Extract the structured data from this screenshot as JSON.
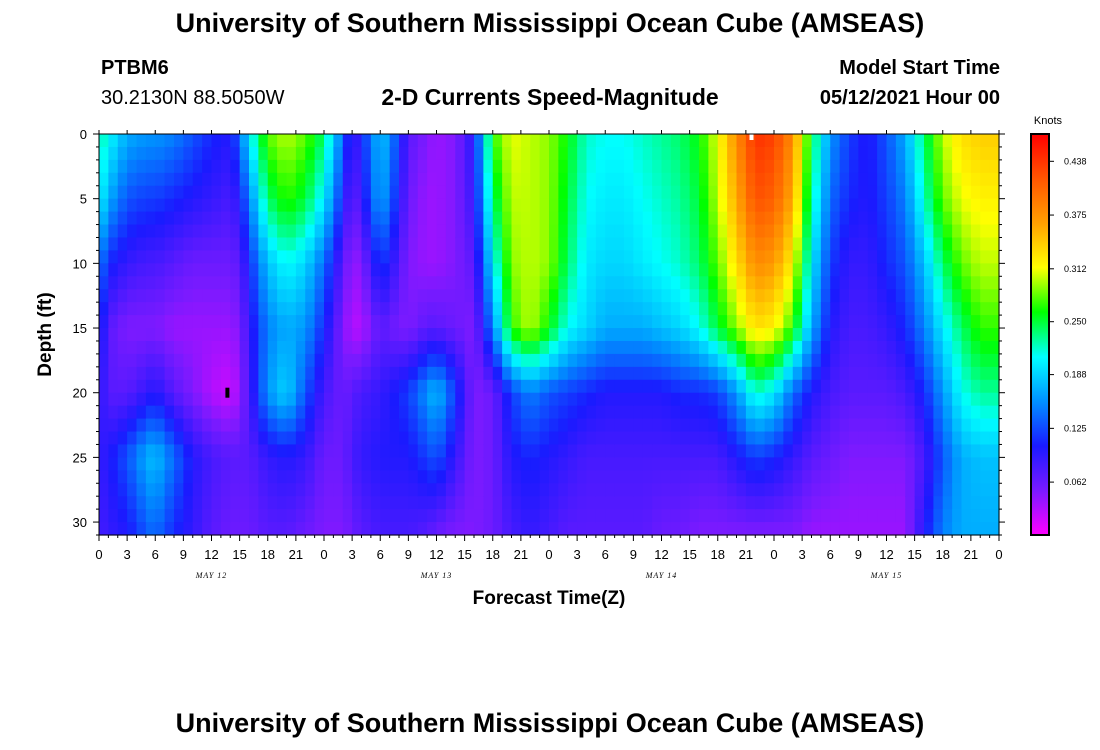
{
  "header": {
    "title": "University of Southern Mississippi Ocean Cube (AMSEAS)",
    "station_id": "PTBM6",
    "station_coords": "30.2130N  88.5050W",
    "plot_title": "2-D Currents Speed-Magnitude",
    "start_label": "Model Start Time",
    "start_value": "05/12/2021 Hour 00"
  },
  "footer": {
    "title": "University of Southern Mississippi Ocean Cube (AMSEAS)"
  },
  "chart_data": {
    "type": "heatmap",
    "title": "2-D Currents Speed-Magnitude",
    "xlabel": "Forecast Time(Z)",
    "ylabel": "Depth (ft)",
    "x_unit": "forecast hour",
    "xlim": [
      0,
      96
    ],
    "ylim": [
      31,
      0
    ],
    "x_ticks": [
      {
        "hour": 0,
        "label": "0"
      },
      {
        "hour": 3,
        "label": "3"
      },
      {
        "hour": 6,
        "label": "6"
      },
      {
        "hour": 9,
        "label": "9"
      },
      {
        "hour": 12,
        "label": "12"
      },
      {
        "hour": 15,
        "label": "15"
      },
      {
        "hour": 18,
        "label": "18"
      },
      {
        "hour": 21,
        "label": "21"
      },
      {
        "hour": 24,
        "label": "0"
      },
      {
        "hour": 27,
        "label": "3"
      },
      {
        "hour": 30,
        "label": "6"
      },
      {
        "hour": 33,
        "label": "9"
      },
      {
        "hour": 36,
        "label": "12"
      },
      {
        "hour": 39,
        "label": "15"
      },
      {
        "hour": 42,
        "label": "18"
      },
      {
        "hour": 45,
        "label": "21"
      },
      {
        "hour": 48,
        "label": "0"
      },
      {
        "hour": 51,
        "label": "3"
      },
      {
        "hour": 54,
        "label": "6"
      },
      {
        "hour": 57,
        "label": "9"
      },
      {
        "hour": 60,
        "label": "12"
      },
      {
        "hour": 63,
        "label": "15"
      },
      {
        "hour": 66,
        "label": "18"
      },
      {
        "hour": 69,
        "label": "21"
      },
      {
        "hour": 72,
        "label": "0"
      },
      {
        "hour": 75,
        "label": "3"
      },
      {
        "hour": 78,
        "label": "6"
      },
      {
        "hour": 81,
        "label": "9"
      },
      {
        "hour": 84,
        "label": "12"
      },
      {
        "hour": 87,
        "label": "15"
      },
      {
        "hour": 90,
        "label": "18"
      },
      {
        "hour": 93,
        "label": "21"
      },
      {
        "hour": 96,
        "label": "0"
      }
    ],
    "day_labels": [
      {
        "hour": 12,
        "label": "MAY 12"
      },
      {
        "hour": 36,
        "label": "MAY 13"
      },
      {
        "hour": 60,
        "label": "MAY 14"
      },
      {
        "hour": 84,
        "label": "MAY 15"
      }
    ],
    "y_ticks": [
      0,
      5,
      10,
      15,
      20,
      25,
      30
    ],
    "colorbar": {
      "title": "Knots",
      "range": [
        0.0,
        0.47
      ],
      "ticks": [
        0.062,
        0.125,
        0.188,
        0.25,
        0.312,
        0.375,
        0.438
      ],
      "tick_labels": [
        "0.062",
        "0.125",
        "0.188",
        "0.250",
        "0.312",
        "0.375",
        "0.438"
      ],
      "colors": [
        "#ff00ff",
        "#7a1aff",
        "#1a1aff",
        "#0090ff",
        "#00ffff",
        "#00ff00",
        "#ffff00",
        "#ffa000",
        "#ff5500",
        "#ff0000"
      ]
    },
    "speed_profiles": {
      "description": "speed (knots) at depths 0,5,10,15,20,25,31 ft for each forecast hour",
      "depths_ft": [
        0,
        5,
        10,
        15,
        20,
        25,
        31
      ],
      "hours": [
        0,
        1,
        3,
        5,
        6,
        8,
        10,
        12,
        14,
        15,
        16,
        18,
        20,
        22,
        24,
        26,
        27,
        28,
        30,
        31,
        33,
        35,
        36,
        38,
        40,
        42,
        44,
        46,
        48,
        50,
        52,
        54,
        56,
        58,
        60,
        62,
        64,
        66,
        68,
        70,
        72,
        74,
        76,
        78,
        80,
        82,
        84,
        86,
        88,
        90,
        92,
        94,
        96
      ],
      "speed": [
        [
          0.23,
          0.21,
          0.15,
          0.12,
          0.1,
          0.09,
          0.08
        ],
        [
          0.21,
          0.17,
          0.11,
          0.07,
          0.07,
          0.1,
          0.09
        ],
        [
          0.17,
          0.13,
          0.09,
          0.05,
          0.07,
          0.13,
          0.1
        ],
        [
          0.16,
          0.12,
          0.08,
          0.05,
          0.09,
          0.17,
          0.13
        ],
        [
          0.16,
          0.12,
          0.08,
          0.05,
          0.1,
          0.18,
          0.14
        ],
        [
          0.15,
          0.11,
          0.07,
          0.04,
          0.07,
          0.14,
          0.11
        ],
        [
          0.13,
          0.1,
          0.06,
          0.04,
          0.05,
          0.1,
          0.09
        ],
        [
          0.11,
          0.09,
          0.06,
          0.04,
          0.03,
          0.08,
          0.07
        ],
        [
          0.1,
          0.08,
          0.06,
          0.04,
          0.02,
          0.07,
          0.06
        ],
        [
          0.14,
          0.1,
          0.07,
          0.05,
          0.04,
          0.07,
          0.06
        ],
        [
          0.2,
          0.15,
          0.11,
          0.09,
          0.08,
          0.07,
          0.06
        ],
        [
          0.28,
          0.24,
          0.18,
          0.15,
          0.16,
          0.09,
          0.07
        ],
        [
          0.3,
          0.27,
          0.21,
          0.17,
          0.19,
          0.1,
          0.07
        ],
        [
          0.28,
          0.25,
          0.19,
          0.16,
          0.13,
          0.09,
          0.06
        ],
        [
          0.24,
          0.2,
          0.14,
          0.11,
          0.08,
          0.06,
          0.05
        ],
        [
          0.14,
          0.11,
          0.07,
          0.05,
          0.06,
          0.06,
          0.05
        ],
        [
          0.08,
          0.06,
          0.04,
          0.03,
          0.07,
          0.08,
          0.06
        ],
        [
          0.11,
          0.09,
          0.05,
          0.03,
          0.08,
          0.09,
          0.07
        ],
        [
          0.18,
          0.17,
          0.12,
          0.07,
          0.09,
          0.1,
          0.08
        ],
        [
          0.16,
          0.14,
          0.1,
          0.06,
          0.1,
          0.1,
          0.08
        ],
        [
          0.07,
          0.06,
          0.05,
          0.05,
          0.12,
          0.1,
          0.08
        ],
        [
          0.05,
          0.04,
          0.04,
          0.07,
          0.16,
          0.12,
          0.07
        ],
        [
          0.04,
          0.04,
          0.04,
          0.07,
          0.18,
          0.13,
          0.06
        ],
        [
          0.05,
          0.05,
          0.05,
          0.06,
          0.12,
          0.09,
          0.05
        ],
        [
          0.1,
          0.09,
          0.07,
          0.05,
          0.05,
          0.05,
          0.05
        ],
        [
          0.27,
          0.24,
          0.2,
          0.15,
          0.06,
          0.06,
          0.06
        ],
        [
          0.31,
          0.3,
          0.29,
          0.27,
          0.12,
          0.1,
          0.08
        ],
        [
          0.3,
          0.3,
          0.3,
          0.3,
          0.15,
          0.11,
          0.09
        ],
        [
          0.29,
          0.29,
          0.29,
          0.26,
          0.13,
          0.1,
          0.08
        ],
        [
          0.26,
          0.25,
          0.24,
          0.21,
          0.12,
          0.09,
          0.07
        ],
        [
          0.22,
          0.21,
          0.2,
          0.19,
          0.11,
          0.08,
          0.07
        ],
        [
          0.21,
          0.2,
          0.19,
          0.17,
          0.1,
          0.08,
          0.07
        ],
        [
          0.21,
          0.2,
          0.19,
          0.17,
          0.1,
          0.08,
          0.07
        ],
        [
          0.22,
          0.21,
          0.2,
          0.17,
          0.1,
          0.08,
          0.07
        ],
        [
          0.23,
          0.22,
          0.21,
          0.18,
          0.1,
          0.08,
          0.06
        ],
        [
          0.24,
          0.23,
          0.22,
          0.19,
          0.11,
          0.08,
          0.06
        ],
        [
          0.26,
          0.25,
          0.24,
          0.21,
          0.11,
          0.08,
          0.05
        ],
        [
          0.31,
          0.3,
          0.28,
          0.25,
          0.12,
          0.08,
          0.05
        ],
        [
          0.38,
          0.36,
          0.33,
          0.29,
          0.16,
          0.1,
          0.05
        ],
        [
          0.44,
          0.42,
          0.38,
          0.33,
          0.22,
          0.12,
          0.05
        ],
        [
          0.43,
          0.41,
          0.37,
          0.32,
          0.2,
          0.11,
          0.05
        ],
        [
          0.38,
          0.36,
          0.32,
          0.27,
          0.14,
          0.09,
          0.05
        ],
        [
          0.25,
          0.23,
          0.2,
          0.17,
          0.1,
          0.07,
          0.04
        ],
        [
          0.16,
          0.14,
          0.12,
          0.1,
          0.08,
          0.06,
          0.04
        ],
        [
          0.12,
          0.11,
          0.09,
          0.08,
          0.07,
          0.05,
          0.04
        ],
        [
          0.1,
          0.1,
          0.09,
          0.08,
          0.07,
          0.05,
          0.04
        ],
        [
          0.13,
          0.12,
          0.11,
          0.09,
          0.07,
          0.05,
          0.04
        ],
        [
          0.17,
          0.15,
          0.13,
          0.11,
          0.08,
          0.05,
          0.04
        ],
        [
          0.24,
          0.22,
          0.18,
          0.15,
          0.11,
          0.08,
          0.1
        ],
        [
          0.3,
          0.28,
          0.24,
          0.2,
          0.16,
          0.13,
          0.15
        ],
        [
          0.33,
          0.31,
          0.28,
          0.24,
          0.21,
          0.17,
          0.17
        ],
        [
          0.34,
          0.32,
          0.3,
          0.27,
          0.23,
          0.18,
          0.17
        ],
        [
          0.34,
          0.32,
          0.3,
          0.27,
          0.23,
          0.18,
          0.17
        ]
      ]
    },
    "markers": [
      {
        "hour": 13.7,
        "depth_ft": 20,
        "color": "#000000"
      },
      {
        "hour": 69.6,
        "depth_ft": 0,
        "color": "#ffffff"
      }
    ]
  }
}
